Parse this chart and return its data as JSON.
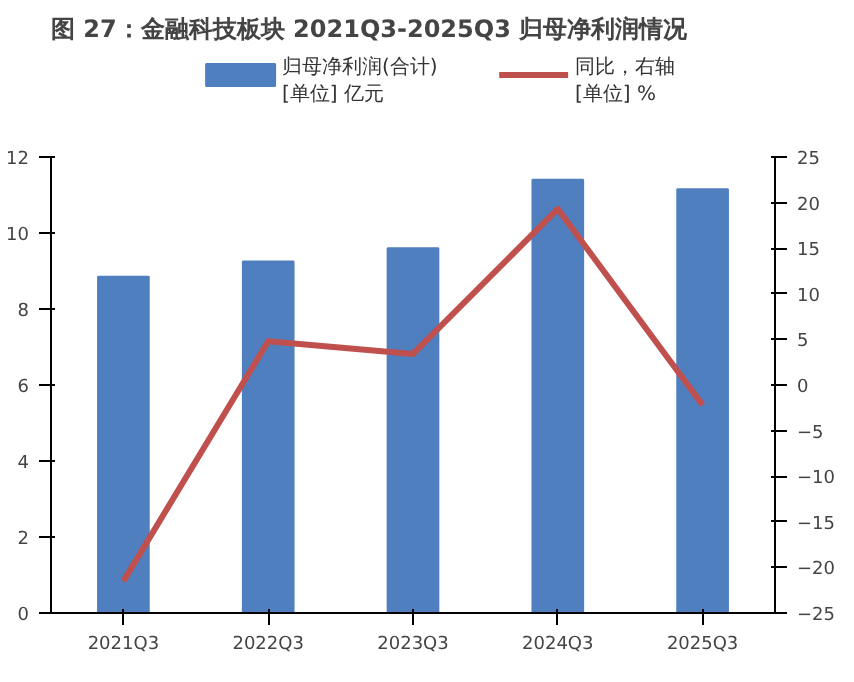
{
  "chart_data": {
    "type": "bar",
    "title": "图 27：金融科技板块 2021Q3-2025Q3 归母净利润情况",
    "categories": [
      "2021Q3",
      "2022Q3",
      "2023Q3",
      "2024Q3",
      "2025Q3"
    ],
    "series": [
      {
        "name": "归母净利润(合计)\n[单位] 亿元",
        "color": "#4f7fbf",
        "values": [
          8.85,
          9.25,
          9.6,
          11.4,
          11.15
        ]
      },
      {
        "name": "同比，右轴\n[单位] %",
        "color": "#c0504d",
        "type": "line",
        "axis": "y2",
        "values": [
          -21.5,
          4.8,
          3.4,
          19.3,
          -2.2
        ]
      }
    ],
    "ylim": [
      0,
      12
    ],
    "yticks": [
      0,
      2,
      4,
      6,
      8,
      10,
      12
    ],
    "y2lim": [
      -25,
      25
    ],
    "y2ticks": [
      -25,
      -20,
      -15,
      -10,
      -5,
      0,
      5,
      10,
      15,
      20,
      25
    ],
    "grid": false,
    "legend": "top"
  }
}
